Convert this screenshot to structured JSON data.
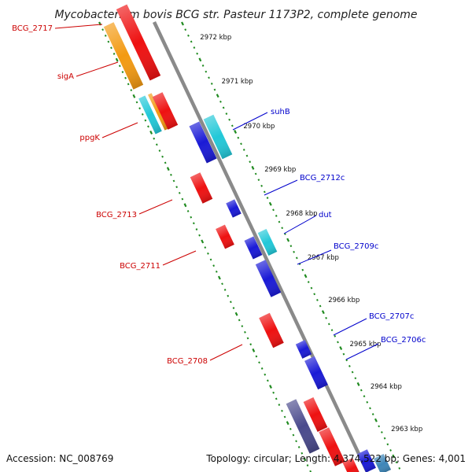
{
  "title": "Mycobacterium bovis BCG str. Pasteur 1173P2, complete genome",
  "footer": {
    "accession": "Accession: NC_008769",
    "summary": "Topology: circular; Length: 4,374,522 bp; Genes: 4,001"
  },
  "colors": {
    "backbone": "#8a8a8a",
    "ticks": "#1f8a1f",
    "reverse_label": "#cc0000",
    "forward_label": "#0000cc",
    "red": "#ee1111",
    "orange": "#f39a12",
    "cyan": "#22c8d8",
    "blue": "#1a1ad6",
    "navy": "#4a4a8c",
    "steel": "#3d86b8"
  },
  "scale": [
    "2972 kbp",
    "2971 kbp",
    "2970 kbp",
    "2969 kbp",
    "2968 kbp",
    "2967 kbp",
    "2966 kbp",
    "2965 kbp",
    "2964 kbp",
    "2963 kbp"
  ],
  "genes_reverse": [
    "BCG_2717",
    "sigA",
    "ppgK",
    "BCG_2713",
    "BCG_2711",
    "BCG_2708"
  ],
  "genes_forward": [
    "suhB",
    "BCG_2712c",
    "dut",
    "BCG_2709c",
    "BCG_2707c",
    "BCG_2706c"
  ]
}
